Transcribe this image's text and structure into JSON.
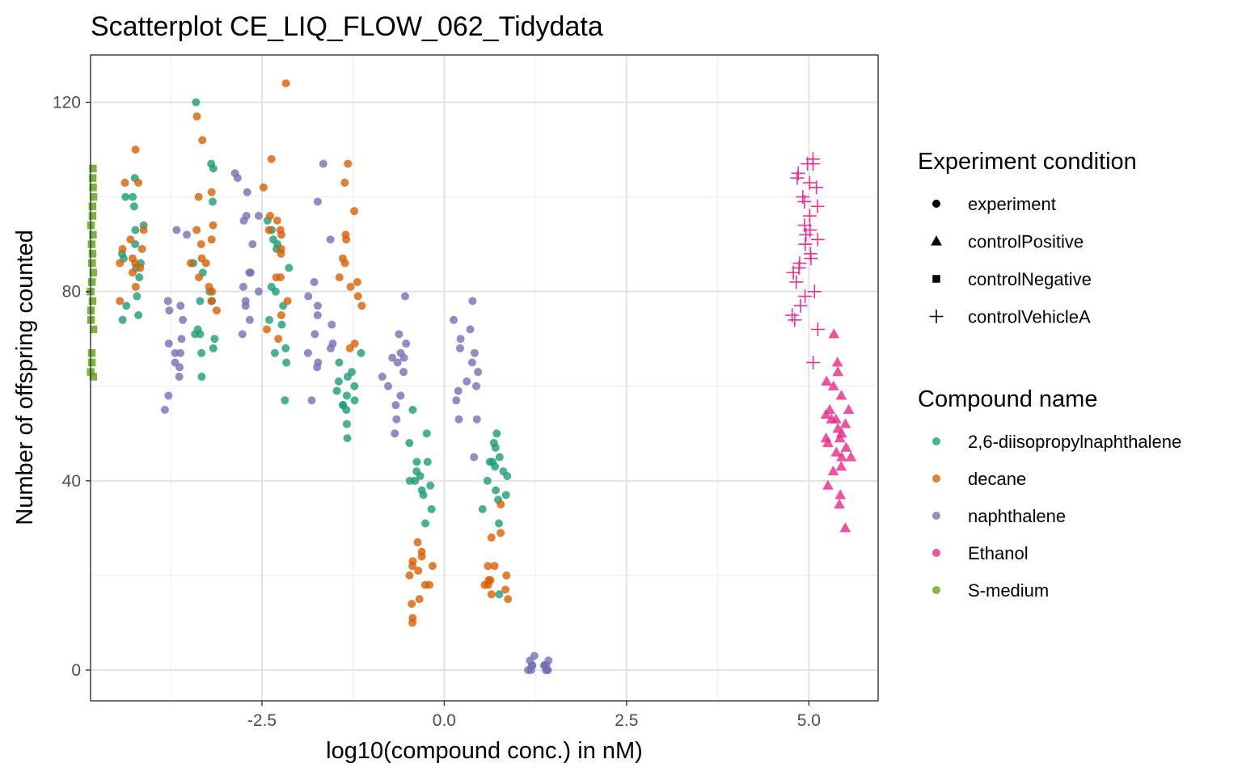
{
  "chart_data": {
    "type": "scatter",
    "title": "Scatterplot CE_LIQ_FLOW_062_Tidydata",
    "xlabel": "log10(compound conc.) in nM)",
    "ylabel": "Number of offspring counted",
    "xlim": [
      -4.85,
      5.95
    ],
    "ylim": [
      -6.5,
      130
    ],
    "x_ticks": [
      -2.5,
      0.0,
      2.5,
      5.0
    ],
    "x_tick_labels": [
      "-2.5",
      "0.0",
      "2.5",
      "5.0"
    ],
    "y_ticks": [
      0,
      40,
      80,
      120
    ],
    "y_tick_labels": [
      "0",
      "40",
      "80",
      "120"
    ],
    "grid": true,
    "legend_position": "right",
    "legends": [
      {
        "title": "Experiment condition",
        "entries": [
          {
            "label": "experiment",
            "shape": "circle"
          },
          {
            "label": "controlPositive",
            "shape": "triangle"
          },
          {
            "label": "controlNegative",
            "shape": "square"
          },
          {
            "label": "controlVehicleA",
            "shape": "plus"
          }
        ]
      },
      {
        "title": "Compound name",
        "entries": [
          {
            "label": "2,6-diisopropylnaphthalene",
            "color": "#1b9e77"
          },
          {
            "label": "decane",
            "color": "#d95f02"
          },
          {
            "label": "naphthalene",
            "color": "#7570b3"
          },
          {
            "label": "Ethanol",
            "color": "#e7298a"
          },
          {
            "label": "S-medium",
            "color": "#66a61e"
          }
        ]
      }
    ],
    "series": [
      {
        "name": "2,6-diisopropylnaphthalene",
        "color": "#1b9e77",
        "shape": "circle",
        "groups": [
          {
            "x": -4.3,
            "y": [
              104,
              100,
              98,
              94,
              93,
              90,
              88,
              86,
              85,
              83,
              79,
              77,
              75,
              74,
              100,
              87
            ]
          },
          {
            "x": -3.3,
            "y": [
              120,
              107,
              106,
              99,
              86,
              84,
              80,
              78,
              72,
              71,
              70,
              68,
              67,
              62,
              78,
              71
            ]
          },
          {
            "x": -2.3,
            "y": [
              95,
              93,
              91,
              89,
              85,
              80,
              77,
              74,
              67,
              65,
              57,
              81,
              90,
              68,
              73
            ]
          },
          {
            "x": -1.3,
            "y": [
              65,
              63,
              61,
              60,
              58,
              57,
              56,
              55,
              52,
              49,
              67,
              62,
              59,
              56
            ]
          },
          {
            "x": -0.3,
            "y": [
              55,
              50,
              48,
              44,
              42,
              41,
              40,
              39,
              38,
              37,
              34,
              31,
              44,
              40
            ]
          },
          {
            "x": 0.7,
            "y": [
              50,
              48,
              47,
              45,
              44,
              43,
              41,
              40,
              38,
              37,
              36,
              34,
              31,
              16,
              44,
              42
            ]
          }
        ]
      },
      {
        "name": "decane",
        "color": "#d95f02",
        "shape": "circle",
        "groups": [
          {
            "x": -4.3,
            "y": [
              110,
              103,
              103,
              93,
              91,
              89,
              87,
              86,
              85,
              84,
              81,
              78,
              89,
              86
            ]
          },
          {
            "x": -3.3,
            "y": [
              117,
              112,
              101,
              100,
              94,
              93,
              91,
              90,
              87,
              86,
              83,
              81,
              80,
              78,
              76,
              86
            ]
          },
          {
            "x": -2.3,
            "y": [
              124,
              108,
              102,
              96,
              95,
              93,
              92,
              88,
              83,
              83,
              78,
              75,
              72,
              70,
              93,
              89
            ]
          },
          {
            "x": -1.3,
            "y": [
              107,
              103,
              97,
              92,
              91,
              87,
              86,
              83,
              81,
              77,
              69,
              68,
              79,
              82
            ]
          },
          {
            "x": -0.3,
            "y": [
              27,
              25,
              24,
              23,
              22,
              21,
              20,
              18,
              15,
              14,
              11,
              10,
              22,
              18
            ]
          },
          {
            "x": 0.7,
            "y": [
              35,
              29,
              28,
              22,
              22,
              20,
              19,
              18,
              17,
              16,
              15,
              18,
              19
            ]
          }
        ]
      },
      {
        "name": "naphthalene",
        "color": "#7570b3",
        "shape": "circle",
        "groups": [
          {
            "x": -3.7,
            "y": [
              93,
              92,
              78,
              77,
              76,
              74,
              69,
              67,
              67,
              65,
              64,
              62,
              58,
              55,
              70
            ]
          },
          {
            "x": -2.7,
            "y": [
              105,
              104,
              101,
              96,
              95,
              90,
              84,
              84,
              81,
              78,
              77,
              74,
              71,
              96,
              80
            ]
          },
          {
            "x": -1.7,
            "y": [
              107,
              99,
              91,
              82,
              79,
              77,
              75,
              73,
              69,
              67,
              65,
              64,
              57,
              68,
              71
            ]
          },
          {
            "x": -0.7,
            "y": [
              79,
              71,
              69,
              67,
              66,
              65,
              63,
              60,
              58,
              56,
              53,
              50,
              62,
              66
            ]
          },
          {
            "x": 0.3,
            "y": [
              78,
              74,
              72,
              70,
              67,
              65,
              63,
              61,
              60,
              59,
              57,
              53,
              53,
              45,
              68
            ]
          },
          {
            "x": 1.3,
            "y": [
              3,
              2,
              1,
              1,
              1,
              0,
              0,
              0,
              0,
              1,
              2,
              0,
              1
            ]
          }
        ]
      },
      {
        "name": "Ethanol",
        "color": "#e7298a",
        "shape": "triangle",
        "groups": [
          {
            "x": 5.4,
            "y": [
              71,
              65,
              63,
              61,
              60,
              58,
              55,
              55,
              54,
              53,
              52,
              51,
              50,
              49,
              48,
              47,
              46,
              45,
              43,
              42,
              39,
              37,
              35,
              30,
              53,
              49,
              45
            ]
          }
        ]
      },
      {
        "name": "Ethanol",
        "color": "#e7298a",
        "shape": "plus",
        "groups": [
          {
            "x": 4.95,
            "y": [
              108,
              107,
              105,
              104,
              103,
              102,
              100,
              99,
              98,
              96,
              94,
              93,
              92,
              90,
              88,
              87,
              86,
              85,
              84,
              82,
              80,
              79,
              77,
              75,
              74,
              72,
              65,
              107,
              91
            ]
          }
        ]
      },
      {
        "name": "S-medium",
        "color": "#66a61e",
        "shape": "square",
        "groups": [
          {
            "x": -4.85,
            "y": [
              106,
              104,
              102,
              100,
              98,
              96,
              94,
              92,
              90,
              88,
              86,
              84,
              82,
              80,
              78,
              76,
              74,
              72,
              67,
              65,
              63,
              62
            ]
          }
        ]
      }
    ]
  }
}
